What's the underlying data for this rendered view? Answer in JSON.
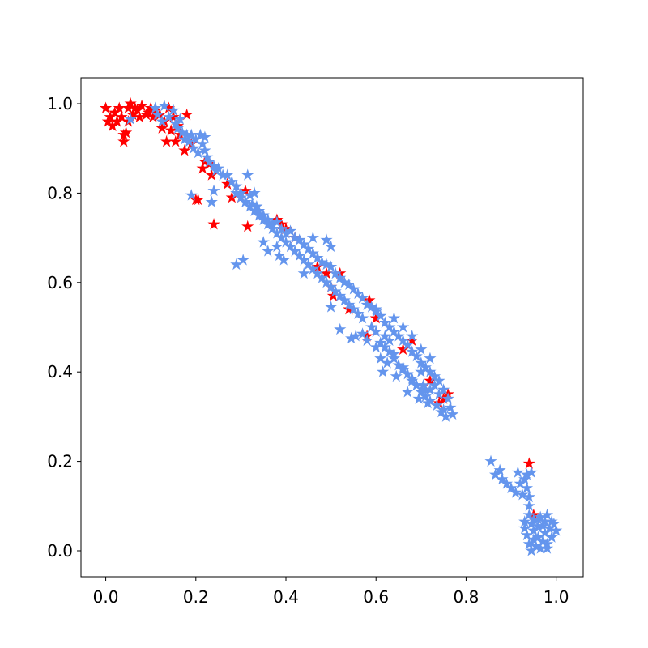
{
  "chart_data": {
    "type": "scatter",
    "title": "",
    "xlabel": "",
    "ylabel": "",
    "xlim": [
      -0.055,
      1.06
    ],
    "ylim": [
      -0.058,
      1.058
    ],
    "grid": false,
    "marker": "star",
    "xticks": [
      "0.0",
      "0.2",
      "0.4",
      "0.6",
      "0.8",
      "1.0"
    ],
    "yticks": [
      "0.0",
      "0.2",
      "0.4",
      "0.6",
      "0.8",
      "1.0"
    ],
    "series": [
      {
        "color": "#ff0000",
        "points": [
          [
            0.0,
            0.99
          ],
          [
            0.005,
            0.96
          ],
          [
            0.01,
            0.97
          ],
          [
            0.015,
            0.95
          ],
          [
            0.02,
            0.98
          ],
          [
            0.025,
            0.96
          ],
          [
            0.03,
            0.99
          ],
          [
            0.035,
            0.97
          ],
          [
            0.04,
            0.93
          ],
          [
            0.04,
            0.915
          ],
          [
            0.045,
            0.935
          ],
          [
            0.05,
            0.96
          ],
          [
            0.05,
            0.99
          ],
          [
            0.055,
            1.0
          ],
          [
            0.06,
            0.975
          ],
          [
            0.065,
            0.99
          ],
          [
            0.07,
            0.985
          ],
          [
            0.075,
            0.97
          ],
          [
            0.08,
            0.995
          ],
          [
            0.09,
            0.975
          ],
          [
            0.095,
            0.98
          ],
          [
            0.1,
            0.99
          ],
          [
            0.105,
            0.97
          ],
          [
            0.11,
            0.985
          ],
          [
            0.12,
            0.975
          ],
          [
            0.125,
            0.945
          ],
          [
            0.13,
            0.96
          ],
          [
            0.135,
            0.915
          ],
          [
            0.14,
            0.99
          ],
          [
            0.145,
            0.94
          ],
          [
            0.15,
            0.97
          ],
          [
            0.155,
            0.915
          ],
          [
            0.16,
            0.95
          ],
          [
            0.165,
            0.93
          ],
          [
            0.175,
            0.895
          ],
          [
            0.18,
            0.975
          ],
          [
            0.19,
            0.91
          ],
          [
            0.2,
            0.785
          ],
          [
            0.205,
            0.785
          ],
          [
            0.215,
            0.855
          ],
          [
            0.22,
            0.87
          ],
          [
            0.23,
            0.865
          ],
          [
            0.235,
            0.84
          ],
          [
            0.24,
            0.73
          ],
          [
            0.27,
            0.82
          ],
          [
            0.28,
            0.79
          ],
          [
            0.3,
            0.79
          ],
          [
            0.31,
            0.805
          ],
          [
            0.315,
            0.725
          ],
          [
            0.38,
            0.74
          ],
          [
            0.39,
            0.73
          ],
          [
            0.4,
            0.72
          ],
          [
            0.42,
            0.7
          ],
          [
            0.47,
            0.635
          ],
          [
            0.49,
            0.62
          ],
          [
            0.5,
            0.59
          ],
          [
            0.505,
            0.57
          ],
          [
            0.52,
            0.62
          ],
          [
            0.54,
            0.54
          ],
          [
            0.58,
            0.48
          ],
          [
            0.585,
            0.56
          ],
          [
            0.6,
            0.52
          ],
          [
            0.66,
            0.45
          ],
          [
            0.68,
            0.47
          ],
          [
            0.72,
            0.38
          ],
          [
            0.74,
            0.33
          ],
          [
            0.75,
            0.34
          ],
          [
            0.76,
            0.35
          ],
          [
            0.94,
            0.195
          ],
          [
            0.95,
            0.08
          ]
        ]
      },
      {
        "color": "#6495ed",
        "points": [
          [
            0.055,
            0.965
          ],
          [
            0.11,
            0.99
          ],
          [
            0.115,
            0.975
          ],
          [
            0.125,
            0.96
          ],
          [
            0.13,
            0.995
          ],
          [
            0.14,
            0.97
          ],
          [
            0.15,
            0.985
          ],
          [
            0.155,
            0.955
          ],
          [
            0.16,
            0.945
          ],
          [
            0.165,
            0.965
          ],
          [
            0.17,
            0.935
          ],
          [
            0.175,
            0.92
          ],
          [
            0.18,
            0.93
          ],
          [
            0.185,
            0.915
          ],
          [
            0.19,
            0.93
          ],
          [
            0.195,
            0.9
          ],
          [
            0.2,
            0.92
          ],
          [
            0.205,
            0.89
          ],
          [
            0.21,
            0.93
          ],
          [
            0.215,
            0.91
          ],
          [
            0.22,
            0.925
          ],
          [
            0.22,
            0.895
          ],
          [
            0.225,
            0.88
          ],
          [
            0.23,
            0.87
          ],
          [
            0.24,
            0.86
          ],
          [
            0.245,
            0.85
          ],
          [
            0.25,
            0.855
          ],
          [
            0.26,
            0.84
          ],
          [
            0.27,
            0.84
          ],
          [
            0.28,
            0.825
          ],
          [
            0.29,
            0.815
          ],
          [
            0.3,
            0.8
          ],
          [
            0.31,
            0.78
          ],
          [
            0.315,
            0.84
          ],
          [
            0.32,
            0.795
          ],
          [
            0.325,
            0.775
          ],
          [
            0.33,
            0.8
          ],
          [
            0.335,
            0.77
          ],
          [
            0.34,
            0.76
          ],
          [
            0.35,
            0.75
          ],
          [
            0.36,
            0.74
          ],
          [
            0.37,
            0.73
          ],
          [
            0.38,
            0.735
          ],
          [
            0.39,
            0.72
          ],
          [
            0.4,
            0.71
          ],
          [
            0.41,
            0.715
          ],
          [
            0.42,
            0.7
          ],
          [
            0.43,
            0.695
          ],
          [
            0.44,
            0.685
          ],
          [
            0.45,
            0.675
          ],
          [
            0.46,
            0.665
          ],
          [
            0.47,
            0.655
          ],
          [
            0.48,
            0.645
          ],
          [
            0.49,
            0.64
          ],
          [
            0.5,
            0.635
          ],
          [
            0.51,
            0.62
          ],
          [
            0.52,
            0.61
          ],
          [
            0.53,
            0.6
          ],
          [
            0.54,
            0.595
          ],
          [
            0.55,
            0.585
          ],
          [
            0.56,
            0.575
          ],
          [
            0.57,
            0.565
          ],
          [
            0.58,
            0.55
          ],
          [
            0.59,
            0.545
          ],
          [
            0.6,
            0.535
          ],
          [
            0.61,
            0.525
          ],
          [
            0.62,
            0.51
          ],
          [
            0.63,
            0.5
          ],
          [
            0.64,
            0.49
          ],
          [
            0.65,
            0.48
          ],
          [
            0.66,
            0.47
          ],
          [
            0.67,
            0.46
          ],
          [
            0.68,
            0.445
          ],
          [
            0.69,
            0.435
          ],
          [
            0.7,
            0.42
          ],
          [
            0.71,
            0.41
          ],
          [
            0.72,
            0.4
          ],
          [
            0.73,
            0.39
          ],
          [
            0.74,
            0.38
          ],
          [
            0.75,
            0.36
          ],
          [
            0.76,
            0.34
          ],
          [
            0.765,
            0.32
          ],
          [
            0.77,
            0.305
          ],
          [
            0.75,
            0.315
          ],
          [
            0.735,
            0.325
          ],
          [
            0.72,
            0.335
          ],
          [
            0.71,
            0.345
          ],
          [
            0.7,
            0.355
          ],
          [
            0.69,
            0.37
          ],
          [
            0.68,
            0.385
          ],
          [
            0.67,
            0.395
          ],
          [
            0.66,
            0.405
          ],
          [
            0.65,
            0.415
          ],
          [
            0.64,
            0.43
          ],
          [
            0.63,
            0.445
          ],
          [
            0.62,
            0.455
          ],
          [
            0.61,
            0.465
          ],
          [
            0.62,
            0.48
          ],
          [
            0.63,
            0.47
          ],
          [
            0.6,
            0.49
          ],
          [
            0.59,
            0.5
          ],
          [
            0.57,
            0.52
          ],
          [
            0.56,
            0.53
          ],
          [
            0.55,
            0.54
          ],
          [
            0.54,
            0.55
          ],
          [
            0.53,
            0.56
          ],
          [
            0.52,
            0.57
          ],
          [
            0.51,
            0.58
          ],
          [
            0.5,
            0.59
          ],
          [
            0.49,
            0.6
          ],
          [
            0.48,
            0.61
          ],
          [
            0.47,
            0.62
          ],
          [
            0.46,
            0.63
          ],
          [
            0.45,
            0.64
          ],
          [
            0.44,
            0.65
          ],
          [
            0.43,
            0.66
          ],
          [
            0.42,
            0.67
          ],
          [
            0.41,
            0.68
          ],
          [
            0.4,
            0.69
          ],
          [
            0.39,
            0.7
          ],
          [
            0.38,
            0.71
          ],
          [
            0.37,
            0.72
          ],
          [
            0.36,
            0.73
          ],
          [
            0.35,
            0.74
          ],
          [
            0.34,
            0.75
          ],
          [
            0.33,
            0.76
          ],
          [
            0.32,
            0.77
          ],
          [
            0.31,
            0.78
          ],
          [
            0.3,
            0.79
          ],
          [
            0.29,
            0.8
          ],
          [
            0.19,
            0.795
          ],
          [
            0.24,
            0.805
          ],
          [
            0.235,
            0.78
          ],
          [
            0.29,
            0.64
          ],
          [
            0.305,
            0.65
          ],
          [
            0.35,
            0.69
          ],
          [
            0.36,
            0.67
          ],
          [
            0.38,
            0.68
          ],
          [
            0.385,
            0.66
          ],
          [
            0.395,
            0.65
          ],
          [
            0.44,
            0.62
          ],
          [
            0.46,
            0.7
          ],
          [
            0.49,
            0.695
          ],
          [
            0.5,
            0.68
          ],
          [
            0.5,
            0.545
          ],
          [
            0.52,
            0.495
          ],
          [
            0.545,
            0.475
          ],
          [
            0.555,
            0.48
          ],
          [
            0.57,
            0.485
          ],
          [
            0.58,
            0.47
          ],
          [
            0.6,
            0.455
          ],
          [
            0.61,
            0.43
          ],
          [
            0.615,
            0.4
          ],
          [
            0.625,
            0.42
          ],
          [
            0.64,
            0.44
          ],
          [
            0.645,
            0.39
          ],
          [
            0.66,
            0.41
          ],
          [
            0.67,
            0.355
          ],
          [
            0.68,
            0.38
          ],
          [
            0.69,
            0.37
          ],
          [
            0.695,
            0.34
          ],
          [
            0.7,
            0.4
          ],
          [
            0.705,
            0.37
          ],
          [
            0.71,
            0.36
          ],
          [
            0.715,
            0.33
          ],
          [
            0.72,
            0.36
          ],
          [
            0.73,
            0.37
          ],
          [
            0.74,
            0.35
          ],
          [
            0.745,
            0.31
          ],
          [
            0.755,
            0.3
          ],
          [
            0.6,
            0.54
          ],
          [
            0.64,
            0.52
          ],
          [
            0.66,
            0.5
          ],
          [
            0.68,
            0.48
          ],
          [
            0.7,
            0.45
          ],
          [
            0.72,
            0.43
          ],
          [
            0.855,
            0.2
          ],
          [
            0.865,
            0.17
          ],
          [
            0.875,
            0.18
          ],
          [
            0.88,
            0.16
          ],
          [
            0.89,
            0.15
          ],
          [
            0.9,
            0.14
          ],
          [
            0.91,
            0.13
          ],
          [
            0.915,
            0.175
          ],
          [
            0.92,
            0.15
          ],
          [
            0.925,
            0.125
          ],
          [
            0.93,
            0.16
          ],
          [
            0.935,
            0.17
          ],
          [
            0.935,
            0.14
          ],
          [
            0.94,
            0.12
          ],
          [
            0.94,
            0.1
          ],
          [
            0.94,
            0.08
          ],
          [
            0.945,
            0.175
          ],
          [
            0.945,
            0.06
          ],
          [
            0.95,
            0.045
          ],
          [
            0.95,
            0.025
          ],
          [
            0.955,
            0.01
          ],
          [
            0.96,
            0.055
          ],
          [
            0.96,
            0.03
          ],
          [
            0.965,
            0.075
          ],
          [
            0.965,
            0.005
          ],
          [
            0.97,
            0.02
          ],
          [
            0.975,
            0.065
          ],
          [
            0.975,
            0.04
          ],
          [
            0.98,
            0.08
          ],
          [
            0.98,
            0.015
          ],
          [
            0.985,
            0.05
          ],
          [
            0.99,
            0.03
          ],
          [
            0.995,
            0.06
          ],
          [
            1.0,
            0.045
          ],
          [
            0.93,
            0.065
          ],
          [
            0.935,
            0.035
          ],
          [
            0.94,
            0.015
          ],
          [
            0.945,
            0.0
          ],
          [
            0.97,
            0.055
          ],
          [
            0.98,
            0.005
          ],
          [
            0.99,
            0.065
          ],
          [
            0.95,
            0.07
          ],
          [
            0.96,
            0.07
          ],
          [
            0.93,
            0.05
          ]
        ]
      }
    ]
  }
}
